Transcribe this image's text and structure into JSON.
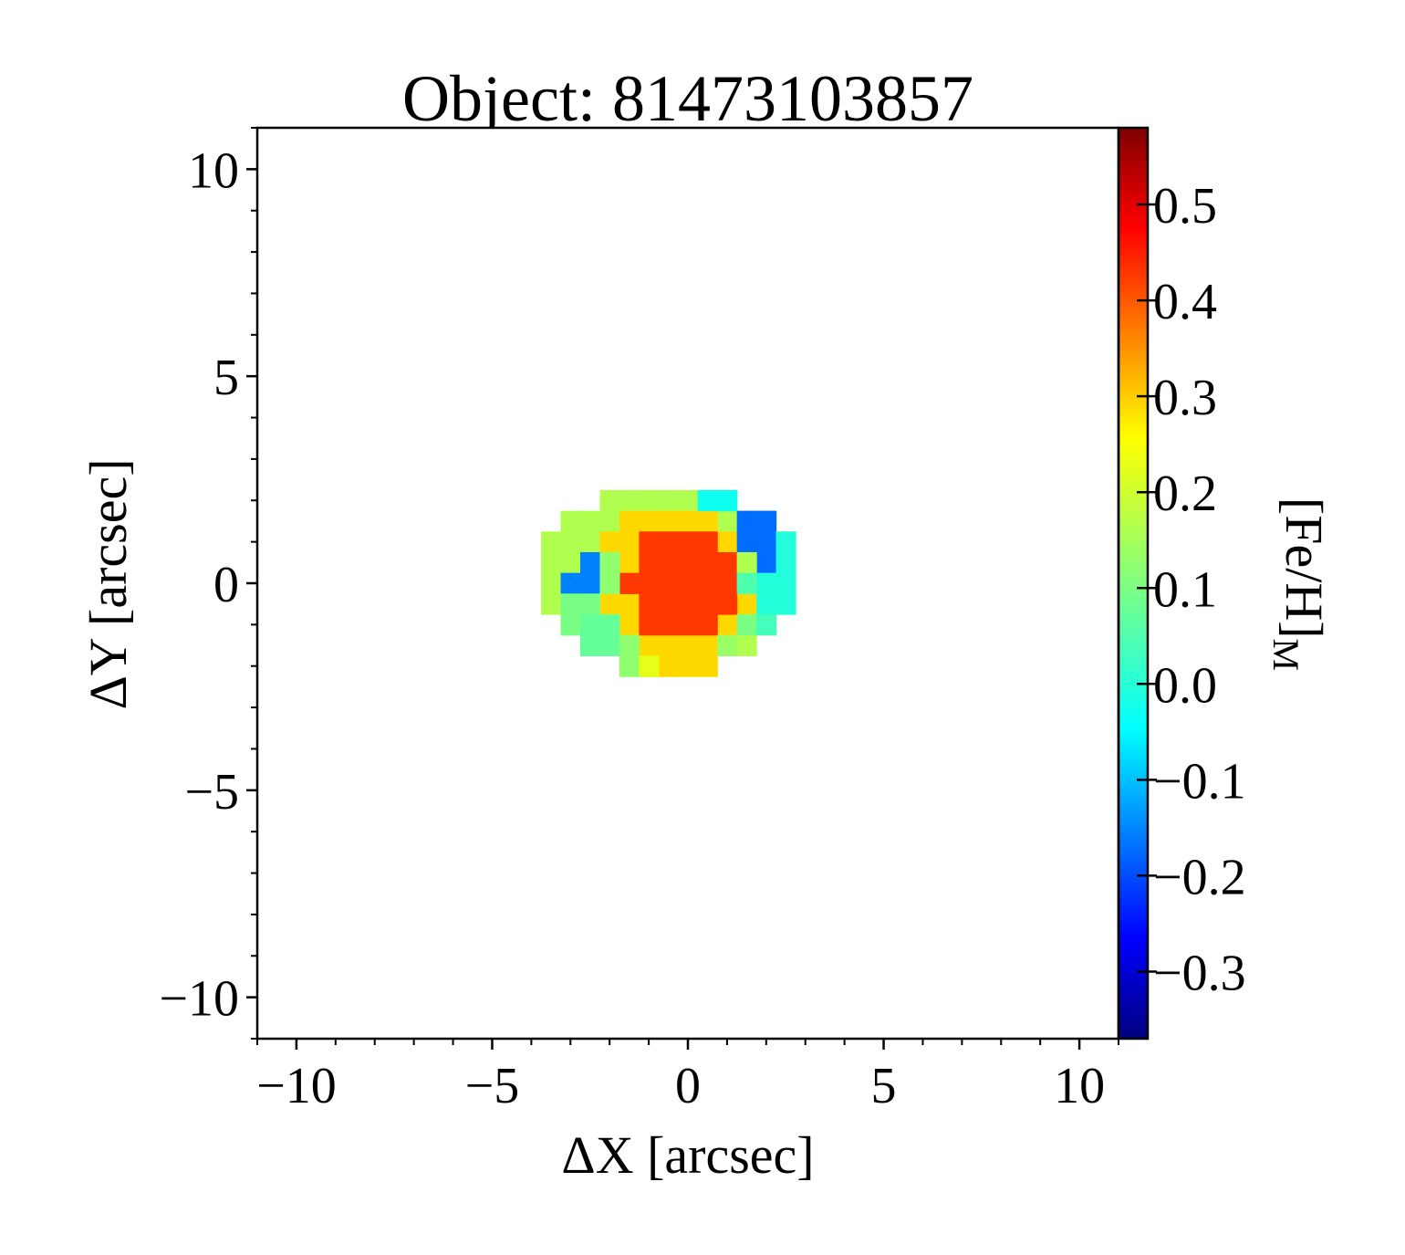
{
  "chart_data": {
    "type": "heatmap",
    "title": "Object: 81473103857",
    "xlabel": "ΔX [arcsec]",
    "ylabel": "ΔY [arcsec]",
    "colorbar_label": "[Fe/H]",
    "colorbar_label_subscript": "M",
    "colormap": "jet",
    "xlim": [
      -11,
      11
    ],
    "ylim": [
      -11,
      11
    ],
    "clim": [
      -0.37,
      0.58
    ],
    "xticks": [
      {
        "value": -10,
        "label": "−10"
      },
      {
        "value": -5,
        "label": "−5"
      },
      {
        "value": 0,
        "label": "0"
      },
      {
        "value": 5,
        "label": "5"
      },
      {
        "value": 10,
        "label": "10"
      }
    ],
    "yticks": [
      {
        "value": 10,
        "label": "10"
      },
      {
        "value": 5,
        "label": "5"
      },
      {
        "value": 0,
        "label": "0"
      },
      {
        "value": -5,
        "label": "−5"
      },
      {
        "value": -10,
        "label": "−10"
      }
    ],
    "colorbar_ticks": [
      {
        "value": 0.5,
        "label": "0.5"
      },
      {
        "value": 0.4,
        "label": "0.4"
      },
      {
        "value": 0.3,
        "label": "0.3"
      },
      {
        "value": 0.2,
        "label": "0.2"
      },
      {
        "value": 0.1,
        "label": "0.1"
      },
      {
        "value": 0.0,
        "label": "0.0"
      },
      {
        "value": -0.1,
        "label": "−0.1"
      },
      {
        "value": -0.2,
        "label": "−0.2"
      },
      {
        "value": -0.3,
        "label": "−0.3"
      }
    ],
    "grid": false,
    "pixel_size": 0.5,
    "cells": [
      {
        "x": 0.5,
        "y": 2.0,
        "v": 0.0
      },
      {
        "x": 1.0,
        "y": 2.0,
        "v": 0.0
      },
      {
        "x": 1.5,
        "y": 1.5,
        "v": -0.15
      },
      {
        "x": 2.0,
        "y": 1.5,
        "v": -0.15
      },
      {
        "x": 1.5,
        "y": 1.0,
        "v": -0.15
      },
      {
        "x": 2.0,
        "y": 1.0,
        "v": -0.15
      },
      {
        "x": 2.0,
        "y": 0.5,
        "v": -0.15
      },
      {
        "x": 1.5,
        "y": 0.5,
        "v": 0.15
      },
      {
        "x": 2.5,
        "y": 1.0,
        "v": 0.02
      },
      {
        "x": 2.5,
        "y": 0.5,
        "v": 0.02
      },
      {
        "x": 2.0,
        "y": 0.0,
        "v": 0.02
      },
      {
        "x": 2.5,
        "y": 0.0,
        "v": 0.02
      },
      {
        "x": 2.0,
        "y": -0.5,
        "v": 0.02
      },
      {
        "x": 2.5,
        "y": -0.5,
        "v": 0.02
      },
      {
        "x": 1.5,
        "y": 0.0,
        "v": 0.06
      },
      {
        "x": -2.5,
        "y": 0.5,
        "v": -0.13
      },
      {
        "x": -2.5,
        "y": 0.0,
        "v": -0.13
      },
      {
        "x": -3.0,
        "y": 0.0,
        "v": -0.13
      },
      {
        "x": -2.0,
        "y": 0.5,
        "v": 0.12
      },
      {
        "x": -2.0,
        "y": 0.0,
        "v": 0.12
      },
      {
        "x": -3.0,
        "y": -0.5,
        "v": 0.1
      },
      {
        "x": -2.5,
        "y": -0.5,
        "v": 0.1
      },
      {
        "x": -3.0,
        "y": -1.0,
        "v": 0.1
      },
      {
        "x": -2.5,
        "y": -1.0,
        "v": 0.08
      },
      {
        "x": -2.0,
        "y": -1.0,
        "v": 0.08
      },
      {
        "x": -2.5,
        "y": -1.5,
        "v": 0.08
      },
      {
        "x": -2.0,
        "y": -1.5,
        "v": 0.08
      },
      {
        "x": -1.5,
        "y": -1.5,
        "v": 0.12
      },
      {
        "x": -1.5,
        "y": -2.0,
        "v": 0.12
      },
      {
        "x": -1.0,
        "y": -2.0,
        "v": 0.2
      },
      {
        "x": 1.0,
        "y": -1.5,
        "v": 0.13
      },
      {
        "x": 1.5,
        "y": -1.0,
        "v": 0.1
      },
      {
        "x": 2.0,
        "y": -1.0,
        "v": 0.05
      }
    ],
    "regions": [
      {
        "shape": "ellipse",
        "cx": -0.5,
        "cy": 0.1,
        "rx": 3.4,
        "ry": 2.2,
        "v": 0.15
      },
      {
        "shape": "ellipse",
        "cx": -0.3,
        "cy": -0.2,
        "rx": 2.3,
        "ry": 2.0,
        "v": 0.26
      },
      {
        "shape": "ellipse",
        "cx": -0.2,
        "cy": 0.0,
        "rx": 1.3,
        "ry": 1.35,
        "v": 0.41
      }
    ]
  }
}
